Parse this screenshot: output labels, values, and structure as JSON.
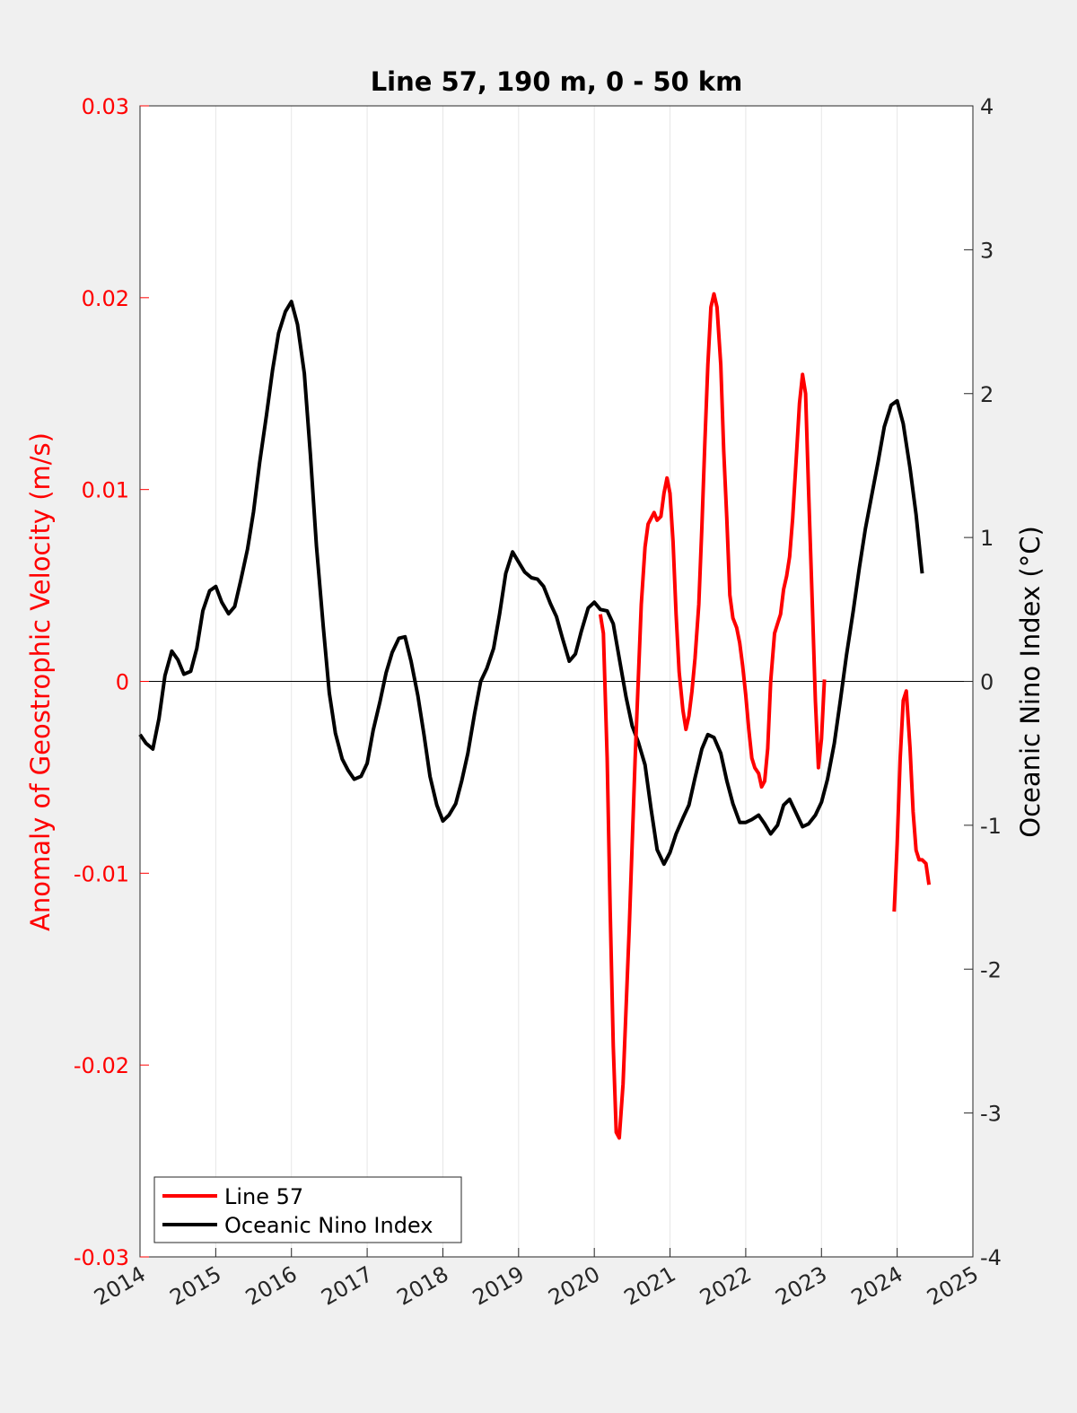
{
  "chart_data": {
    "type": "line",
    "title": "Line 57, 190 m, 0 - 50 km",
    "xlabel": "",
    "ylabel_left": "Anomaly of Geostrophic Velocity (m/s)",
    "ylabel_right": "Oceanic Nino Index (°C)",
    "xlim": [
      2014,
      2025
    ],
    "ylim_left": [
      -0.03,
      0.03
    ],
    "ylim_right": [
      -4,
      4
    ],
    "x_ticks": [
      "2014",
      "2015",
      "2016",
      "2017",
      "2018",
      "2019",
      "2020",
      "2021",
      "2022",
      "2023",
      "2024",
      "2025"
    ],
    "y_left_ticks": [
      "-0.03",
      "-0.02",
      "-0.01",
      "0",
      "0.01",
      "0.02",
      "0.03"
    ],
    "y_right_ticks": [
      "-4",
      "-3",
      "-2",
      "-1",
      "0",
      "1",
      "2",
      "3",
      "4"
    ],
    "grid": "vertical",
    "zero_line": true,
    "legend_position": "bottom-left",
    "colors": {
      "line57": "#ff0000",
      "oni": "#000000",
      "left_axis": "#ff0000",
      "right_axis": "#000000"
    },
    "series": [
      {
        "name": "Line 57",
        "axis": "left",
        "color": "#ff0000",
        "segments": [
          [
            [
              2020.08,
              0.0035
            ],
            [
              2020.12,
              0.0025
            ],
            [
              2020.17,
              -0.004
            ],
            [
              2020.21,
              -0.012
            ],
            [
              2020.25,
              -0.019
            ],
            [
              2020.29,
              -0.0235
            ],
            [
              2020.33,
              -0.0238
            ],
            [
              2020.38,
              -0.021
            ],
            [
              2020.46,
              -0.013
            ],
            [
              2020.54,
              -0.004
            ],
            [
              2020.62,
              0.004
            ],
            [
              2020.67,
              0.007
            ],
            [
              2020.71,
              0.0082
            ],
            [
              2020.79,
              0.0088
            ],
            [
              2020.83,
              0.0084
            ],
            [
              2020.88,
              0.0086
            ],
            [
              2020.92,
              0.0098
            ],
            [
              2020.96,
              0.0106
            ],
            [
              2021.0,
              0.0098
            ],
            [
              2021.04,
              0.0073
            ],
            [
              2021.08,
              0.0035
            ],
            [
              2021.12,
              0.0005
            ],
            [
              2021.17,
              -0.0015
            ],
            [
              2021.21,
              -0.0025
            ],
            [
              2021.25,
              -0.0018
            ],
            [
              2021.29,
              -0.0005
            ],
            [
              2021.33,
              0.0012
            ],
            [
              2021.38,
              0.004
            ],
            [
              2021.42,
              0.008
            ],
            [
              2021.46,
              0.0125
            ],
            [
              2021.5,
              0.0165
            ],
            [
              2021.54,
              0.0195
            ],
            [
              2021.58,
              0.0202
            ],
            [
              2021.62,
              0.0195
            ],
            [
              2021.67,
              0.0165
            ],
            [
              2021.71,
              0.012
            ],
            [
              2021.75,
              0.0085
            ],
            [
              2021.79,
              0.0045
            ],
            [
              2021.83,
              0.0033
            ],
            [
              2021.88,
              0.0028
            ],
            [
              2021.92,
              0.002
            ],
            [
              2021.96,
              0.0008
            ],
            [
              2022.0,
              -0.0007
            ],
            [
              2022.04,
              -0.0025
            ],
            [
              2022.08,
              -0.004
            ],
            [
              2022.12,
              -0.0045
            ],
            [
              2022.17,
              -0.0048
            ],
            [
              2022.21,
              -0.0055
            ],
            [
              2022.25,
              -0.0052
            ],
            [
              2022.29,
              -0.0035
            ],
            [
              2022.33,
              0.0
            ],
            [
              2022.38,
              0.0025
            ],
            [
              2022.42,
              0.003
            ],
            [
              2022.46,
              0.0035
            ],
            [
              2022.5,
              0.0048
            ],
            [
              2022.54,
              0.0055
            ],
            [
              2022.58,
              0.0065
            ],
            [
              2022.62,
              0.0085
            ],
            [
              2022.67,
              0.0118
            ],
            [
              2022.71,
              0.0145
            ],
            [
              2022.75,
              0.016
            ],
            [
              2022.79,
              0.015
            ],
            [
              2022.83,
              0.01
            ],
            [
              2022.88,
              0.004
            ],
            [
              2022.92,
              -0.001
            ],
            [
              2022.96,
              -0.0045
            ],
            [
              2023.0,
              -0.003
            ],
            [
              2023.04,
              0.0001
            ]
          ],
          [
            [
              2023.96,
              -0.012
            ],
            [
              2024.0,
              -0.0085
            ],
            [
              2024.04,
              -0.004
            ],
            [
              2024.08,
              -0.001
            ],
            [
              2024.12,
              -0.0005
            ],
            [
              2024.17,
              -0.0035
            ],
            [
              2024.21,
              -0.0068
            ],
            [
              2024.25,
              -0.0088
            ],
            [
              2024.29,
              -0.0093
            ],
            [
              2024.33,
              -0.0093
            ],
            [
              2024.38,
              -0.0095
            ],
            [
              2024.42,
              -0.0106
            ]
          ]
        ]
      },
      {
        "name": "Oceanic Nino Index",
        "axis": "right",
        "color": "#000000",
        "segments": [
          [
            [
              2014.0,
              -0.37
            ],
            [
              2014.08,
              -0.43
            ],
            [
              2014.17,
              -0.47
            ],
            [
              2014.25,
              -0.26
            ],
            [
              2014.33,
              0.04
            ],
            [
              2014.42,
              0.21
            ],
            [
              2014.5,
              0.15
            ],
            [
              2014.58,
              0.05
            ],
            [
              2014.67,
              0.07
            ],
            [
              2014.75,
              0.23
            ],
            [
              2014.83,
              0.49
            ],
            [
              2014.92,
              0.63
            ],
            [
              2015.0,
              0.66
            ],
            [
              2015.08,
              0.55
            ],
            [
              2015.17,
              0.47
            ],
            [
              2015.25,
              0.52
            ],
            [
              2015.33,
              0.7
            ],
            [
              2015.42,
              0.92
            ],
            [
              2015.5,
              1.18
            ],
            [
              2015.58,
              1.52
            ],
            [
              2015.67,
              1.85
            ],
            [
              2015.75,
              2.16
            ],
            [
              2015.83,
              2.42
            ],
            [
              2015.92,
              2.57
            ],
            [
              2016.0,
              2.64
            ],
            [
              2016.08,
              2.48
            ],
            [
              2016.17,
              2.14
            ],
            [
              2016.25,
              1.58
            ],
            [
              2016.33,
              0.94
            ],
            [
              2016.42,
              0.38
            ],
            [
              2016.5,
              -0.08
            ],
            [
              2016.58,
              -0.36
            ],
            [
              2016.67,
              -0.54
            ],
            [
              2016.75,
              -0.62
            ],
            [
              2016.83,
              -0.68
            ],
            [
              2016.92,
              -0.66
            ],
            [
              2017.0,
              -0.57
            ],
            [
              2017.08,
              -0.34
            ],
            [
              2017.17,
              -0.14
            ],
            [
              2017.25,
              0.06
            ],
            [
              2017.33,
              0.2
            ],
            [
              2017.42,
              0.3
            ],
            [
              2017.5,
              0.31
            ],
            [
              2017.58,
              0.14
            ],
            [
              2017.67,
              -0.1
            ],
            [
              2017.75,
              -0.37
            ],
            [
              2017.83,
              -0.66
            ],
            [
              2017.92,
              -0.86
            ],
            [
              2018.0,
              -0.97
            ],
            [
              2018.08,
              -0.93
            ],
            [
              2018.17,
              -0.85
            ],
            [
              2018.25,
              -0.69
            ],
            [
              2018.33,
              -0.5
            ],
            [
              2018.42,
              -0.22
            ],
            [
              2018.5,
              0.0
            ],
            [
              2018.58,
              0.09
            ],
            [
              2018.67,
              0.23
            ],
            [
              2018.75,
              0.47
            ],
            [
              2018.83,
              0.75
            ],
            [
              2018.92,
              0.9
            ],
            [
              2019.0,
              0.83
            ],
            [
              2019.08,
              0.76
            ],
            [
              2019.17,
              0.72
            ],
            [
              2019.25,
              0.71
            ],
            [
              2019.33,
              0.66
            ],
            [
              2019.42,
              0.54
            ],
            [
              2019.5,
              0.45
            ],
            [
              2019.58,
              0.3
            ],
            [
              2019.67,
              0.14
            ],
            [
              2019.75,
              0.19
            ],
            [
              2019.83,
              0.35
            ],
            [
              2019.92,
              0.51
            ],
            [
              2020.0,
              0.55
            ],
            [
              2020.08,
              0.5
            ],
            [
              2020.17,
              0.49
            ],
            [
              2020.25,
              0.4
            ],
            [
              2020.33,
              0.16
            ],
            [
              2020.42,
              -0.11
            ],
            [
              2020.5,
              -0.31
            ],
            [
              2020.58,
              -0.42
            ],
            [
              2020.67,
              -0.58
            ],
            [
              2020.75,
              -0.89
            ],
            [
              2020.83,
              -1.17
            ],
            [
              2020.92,
              -1.27
            ],
            [
              2021.0,
              -1.19
            ],
            [
              2021.08,
              -1.06
            ],
            [
              2021.17,
              -0.95
            ],
            [
              2021.25,
              -0.86
            ],
            [
              2021.33,
              -0.67
            ],
            [
              2021.42,
              -0.47
            ],
            [
              2021.5,
              -0.37
            ],
            [
              2021.58,
              -0.39
            ],
            [
              2021.67,
              -0.5
            ],
            [
              2021.75,
              -0.69
            ],
            [
              2021.83,
              -0.85
            ],
            [
              2021.92,
              -0.98
            ],
            [
              2022.0,
              -0.98
            ],
            [
              2022.08,
              -0.96
            ],
            [
              2022.17,
              -0.93
            ],
            [
              2022.25,
              -0.99
            ],
            [
              2022.33,
              -1.06
            ],
            [
              2022.42,
              -1.0
            ],
            [
              2022.5,
              -0.86
            ],
            [
              2022.58,
              -0.82
            ],
            [
              2022.67,
              -0.92
            ],
            [
              2022.75,
              -1.01
            ],
            [
              2022.83,
              -0.99
            ],
            [
              2022.92,
              -0.93
            ],
            [
              2023.0,
              -0.84
            ],
            [
              2023.08,
              -0.68
            ],
            [
              2023.17,
              -0.43
            ],
            [
              2023.25,
              -0.13
            ],
            [
              2023.33,
              0.18
            ],
            [
              2023.42,
              0.49
            ],
            [
              2023.5,
              0.79
            ],
            [
              2023.58,
              1.06
            ],
            [
              2023.67,
              1.31
            ],
            [
              2023.75,
              1.53
            ],
            [
              2023.83,
              1.77
            ],
            [
              2023.92,
              1.92
            ],
            [
              2024.0,
              1.95
            ],
            [
              2024.08,
              1.79
            ],
            [
              2024.17,
              1.48
            ],
            [
              2024.25,
              1.16
            ],
            [
              2024.33,
              0.75
            ]
          ]
        ]
      }
    ]
  }
}
